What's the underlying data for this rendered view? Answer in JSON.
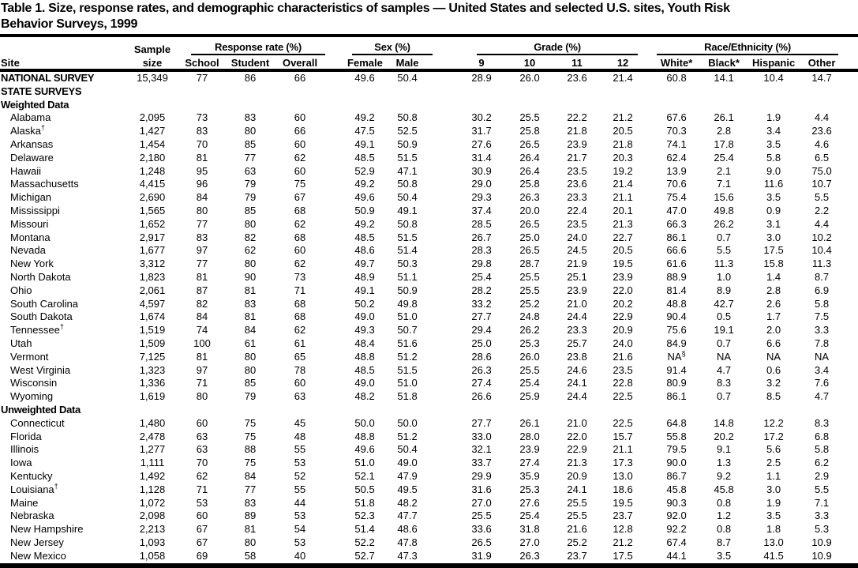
{
  "title": {
    "line1": "Table 1. Size, response rates, and demographic characteristics of samples — United States and selected U.S. sites, Youth Risk",
    "line2": "Behavior Surveys, 1999"
  },
  "header": {
    "site": "Site",
    "sample_line1": "Sample",
    "sample_line2": "size",
    "groups": {
      "response_rate": "Response rate (%)",
      "sex": "Sex (%)",
      "grade": "Grade (%)",
      "race": "Race/Ethnicity (%)"
    },
    "response_cols": [
      "School",
      "Student",
      "Overall"
    ],
    "sex_cols": [
      "Female",
      "Male"
    ],
    "grade_cols": [
      "9",
      "10",
      "11",
      "12"
    ],
    "race_cols": [
      "White*",
      "Black*",
      "Hispanic",
      "Other"
    ]
  },
  "table": {
    "value_column_keys": [
      "sample_size",
      "rr_school",
      "rr_student",
      "rr_overall",
      "sex_female",
      "sex_male",
      "grade_9",
      "grade_10",
      "grade_11",
      "grade_12",
      "race_white",
      "race_black",
      "race_hispanic",
      "race_other"
    ],
    "rows": [
      {
        "site": "NATIONAL SURVEY",
        "style": "national",
        "values": [
          "15,349",
          "77",
          "86",
          "66",
          "49.6",
          "50.4",
          "28.9",
          "26.0",
          "23.6",
          "21.4",
          "60.8",
          "14.1",
          "10.4",
          "14.7"
        ]
      },
      {
        "site": "STATE SURVEYS",
        "style": "section",
        "values": []
      },
      {
        "site": "Weighted Data",
        "style": "section",
        "values": []
      },
      {
        "site": "Alabama",
        "style": "state",
        "values": [
          "2,095",
          "73",
          "83",
          "60",
          "49.2",
          "50.8",
          "30.2",
          "25.5",
          "22.2",
          "21.2",
          "67.6",
          "26.1",
          "1.9",
          "4.4"
        ]
      },
      {
        "site": "Alaska†",
        "style": "state",
        "values": [
          "1,427",
          "83",
          "80",
          "66",
          "47.5",
          "52.5",
          "31.7",
          "25.8",
          "21.8",
          "20.5",
          "70.3",
          "2.8",
          "3.4",
          "23.6"
        ]
      },
      {
        "site": "Arkansas",
        "style": "state",
        "values": [
          "1,454",
          "70",
          "85",
          "60",
          "49.1",
          "50.9",
          "27.6",
          "26.5",
          "23.9",
          "21.8",
          "74.1",
          "17.8",
          "3.5",
          "4.6"
        ]
      },
      {
        "site": "Delaware",
        "style": "state",
        "values": [
          "2,180",
          "81",
          "77",
          "62",
          "48.5",
          "51.5",
          "31.4",
          "26.4",
          "21.7",
          "20.3",
          "62.4",
          "25.4",
          "5.8",
          "6.5"
        ]
      },
      {
        "site": "Hawaii",
        "style": "state",
        "values": [
          "1,248",
          "95",
          "63",
          "60",
          "52.9",
          "47.1",
          "30.9",
          "26.4",
          "23.5",
          "19.2",
          "13.9",
          "2.1",
          "9.0",
          "75.0"
        ]
      },
      {
        "site": "Massachusetts",
        "style": "state",
        "values": [
          "4,415",
          "96",
          "79",
          "75",
          "49.2",
          "50.8",
          "29.0",
          "25.8",
          "23.6",
          "21.4",
          "70.6",
          "7.1",
          "11.6",
          "10.7"
        ]
      },
      {
        "site": "Michigan",
        "style": "state",
        "values": [
          "2,690",
          "84",
          "79",
          "67",
          "49.6",
          "50.4",
          "29.3",
          "26.3",
          "23.3",
          "21.1",
          "75.4",
          "15.6",
          "3.5",
          "5.5"
        ]
      },
      {
        "site": "Mississippi",
        "style": "state",
        "values": [
          "1,565",
          "80",
          "85",
          "68",
          "50.9",
          "49.1",
          "37.4",
          "20.0",
          "22.4",
          "20.1",
          "47.0",
          "49.8",
          "0.9",
          "2.2"
        ]
      },
      {
        "site": "Missouri",
        "style": "state",
        "values": [
          "1,652",
          "77",
          "80",
          "62",
          "49.2",
          "50.8",
          "28.5",
          "26.5",
          "23.5",
          "21.3",
          "66.3",
          "26.2",
          "3.1",
          "4.4"
        ]
      },
      {
        "site": "Montana",
        "style": "state",
        "values": [
          "2,917",
          "83",
          "82",
          "68",
          "48.5",
          "51.5",
          "26.7",
          "25.0",
          "24.0",
          "22.7",
          "86.1",
          "0.7",
          "3.0",
          "10.2"
        ]
      },
      {
        "site": "Nevada",
        "style": "state",
        "values": [
          "1,677",
          "97",
          "62",
          "60",
          "48.6",
          "51.4",
          "28.3",
          "26.5",
          "24.5",
          "20.5",
          "66.6",
          "5.5",
          "17.5",
          "10.4"
        ]
      },
      {
        "site": "New York",
        "style": "state",
        "values": [
          "3,312",
          "77",
          "80",
          "62",
          "49.7",
          "50.3",
          "29.8",
          "28.7",
          "21.9",
          "19.5",
          "61.6",
          "11.3",
          "15.8",
          "11.3"
        ]
      },
      {
        "site": "North Dakota",
        "style": "state",
        "values": [
          "1,823",
          "81",
          "90",
          "73",
          "48.9",
          "51.1",
          "25.4",
          "25.5",
          "25.1",
          "23.9",
          "88.9",
          "1.0",
          "1.4",
          "8.7"
        ]
      },
      {
        "site": "Ohio",
        "style": "state",
        "values": [
          "2,061",
          "87",
          "81",
          "71",
          "49.1",
          "50.9",
          "28.2",
          "25.5",
          "23.9",
          "22.0",
          "81.4",
          "8.9",
          "2.8",
          "6.9"
        ]
      },
      {
        "site": "South Carolina",
        "style": "state",
        "values": [
          "4,597",
          "82",
          "83",
          "68",
          "50.2",
          "49.8",
          "33.2",
          "25.2",
          "21.0",
          "20.2",
          "48.8",
          "42.7",
          "2.6",
          "5.8"
        ]
      },
      {
        "site": "South Dakota",
        "style": "state",
        "values": [
          "1,674",
          "84",
          "81",
          "68",
          "49.0",
          "51.0",
          "27.7",
          "24.8",
          "24.4",
          "22.9",
          "90.4",
          "0.5",
          "1.7",
          "7.5"
        ]
      },
      {
        "site": "Tennessee†",
        "style": "state",
        "values": [
          "1,519",
          "74",
          "84",
          "62",
          "49.3",
          "50.7",
          "29.4",
          "26.2",
          "23.3",
          "20.9",
          "75.6",
          "19.1",
          "2.0",
          "3.3"
        ]
      },
      {
        "site": "Utah",
        "style": "state",
        "values": [
          "1,509",
          "100",
          "61",
          "61",
          "48.4",
          "51.6",
          "25.0",
          "25.3",
          "25.7",
          "24.0",
          "84.9",
          "0.7",
          "6.6",
          "7.8"
        ]
      },
      {
        "site": "Vermont",
        "style": "state",
        "values": [
          "7,125",
          "81",
          "80",
          "65",
          "48.8",
          "51.2",
          "28.6",
          "26.0",
          "23.8",
          "21.6",
          "NA§",
          "NA",
          "NA",
          "NA"
        ]
      },
      {
        "site": "West Virginia",
        "style": "state",
        "values": [
          "1,323",
          "97",
          "80",
          "78",
          "48.5",
          "51.5",
          "26.3",
          "25.5",
          "24.6",
          "23.5",
          "91.4",
          "4.7",
          "0.6",
          "3.4"
        ]
      },
      {
        "site": "Wisconsin",
        "style": "state",
        "values": [
          "1,336",
          "71",
          "85",
          "60",
          "49.0",
          "51.0",
          "27.4",
          "25.4",
          "24.1",
          "22.8",
          "80.9",
          "8.3",
          "3.2",
          "7.6"
        ]
      },
      {
        "site": "Wyoming",
        "style": "state",
        "values": [
          "1,619",
          "80",
          "79",
          "63",
          "48.2",
          "51.8",
          "26.6",
          "25.9",
          "24.4",
          "22.5",
          "86.1",
          "0.7",
          "8.5",
          "4.7"
        ]
      },
      {
        "site": "Unweighted Data",
        "style": "section",
        "values": []
      },
      {
        "site": "Connecticut",
        "style": "state",
        "values": [
          "1,480",
          "60",
          "75",
          "45",
          "50.0",
          "50.0",
          "27.7",
          "26.1",
          "21.0",
          "22.5",
          "64.8",
          "14.8",
          "12.2",
          "8.3"
        ]
      },
      {
        "site": "Florida",
        "style": "state",
        "values": [
          "2,478",
          "63",
          "75",
          "48",
          "48.8",
          "51.2",
          "33.0",
          "28.0",
          "22.0",
          "15.7",
          "55.8",
          "20.2",
          "17.2",
          "6.8"
        ]
      },
      {
        "site": "Illinois",
        "style": "state",
        "values": [
          "1,277",
          "63",
          "88",
          "55",
          "49.6",
          "50.4",
          "32.1",
          "23.9",
          "22.9",
          "21.1",
          "79.5",
          "9.1",
          "5.6",
          "5.8"
        ]
      },
      {
        "site": "Iowa",
        "style": "state",
        "values": [
          "1,111",
          "70",
          "75",
          "53",
          "51.0",
          "49.0",
          "33.7",
          "27.4",
          "21.3",
          "17.3",
          "90.0",
          "1.3",
          "2.5",
          "6.2"
        ]
      },
      {
        "site": "Kentucky",
        "style": "state",
        "values": [
          "1,492",
          "62",
          "84",
          "52",
          "52.1",
          "47.9",
          "29.9",
          "35.9",
          "20.9",
          "13.0",
          "86.7",
          "9.2",
          "1.1",
          "2.9"
        ]
      },
      {
        "site": "Louisiana†",
        "style": "state",
        "values": [
          "1,128",
          "71",
          "77",
          "55",
          "50.5",
          "49.5",
          "31.6",
          "25.3",
          "24.1",
          "18.6",
          "45.8",
          "45.8",
          "3.0",
          "5.5"
        ]
      },
      {
        "site": "Maine",
        "style": "state",
        "values": [
          "1,072",
          "53",
          "83",
          "44",
          "51.8",
          "48.2",
          "27.0",
          "27.6",
          "25.5",
          "19.5",
          "90.3",
          "0.8",
          "1.9",
          "7.1"
        ]
      },
      {
        "site": "Nebraska",
        "style": "state",
        "values": [
          "2,098",
          "60",
          "89",
          "53",
          "52.3",
          "47.7",
          "25.5",
          "25.4",
          "25.5",
          "23.7",
          "92.0",
          "1.2",
          "3.5",
          "3.3"
        ]
      },
      {
        "site": "New Hampshire",
        "style": "state",
        "values": [
          "2,213",
          "67",
          "81",
          "54",
          "51.4",
          "48.6",
          "33.6",
          "31.8",
          "21.6",
          "12.8",
          "92.2",
          "0.8",
          "1.8",
          "5.3"
        ]
      },
      {
        "site": "New Jersey",
        "style": "state",
        "values": [
          "1,093",
          "67",
          "80",
          "53",
          "52.2",
          "47.8",
          "26.5",
          "27.0",
          "25.2",
          "21.2",
          "67.4",
          "8.7",
          "13.0",
          "10.9"
        ]
      },
      {
        "site": "New Mexico",
        "style": "state",
        "values": [
          "1,058",
          "69",
          "58",
          "40",
          "52.7",
          "47.3",
          "31.9",
          "26.3",
          "23.7",
          "17.5",
          "44.1",
          "3.5",
          "41.5",
          "10.9"
        ]
      }
    ]
  }
}
